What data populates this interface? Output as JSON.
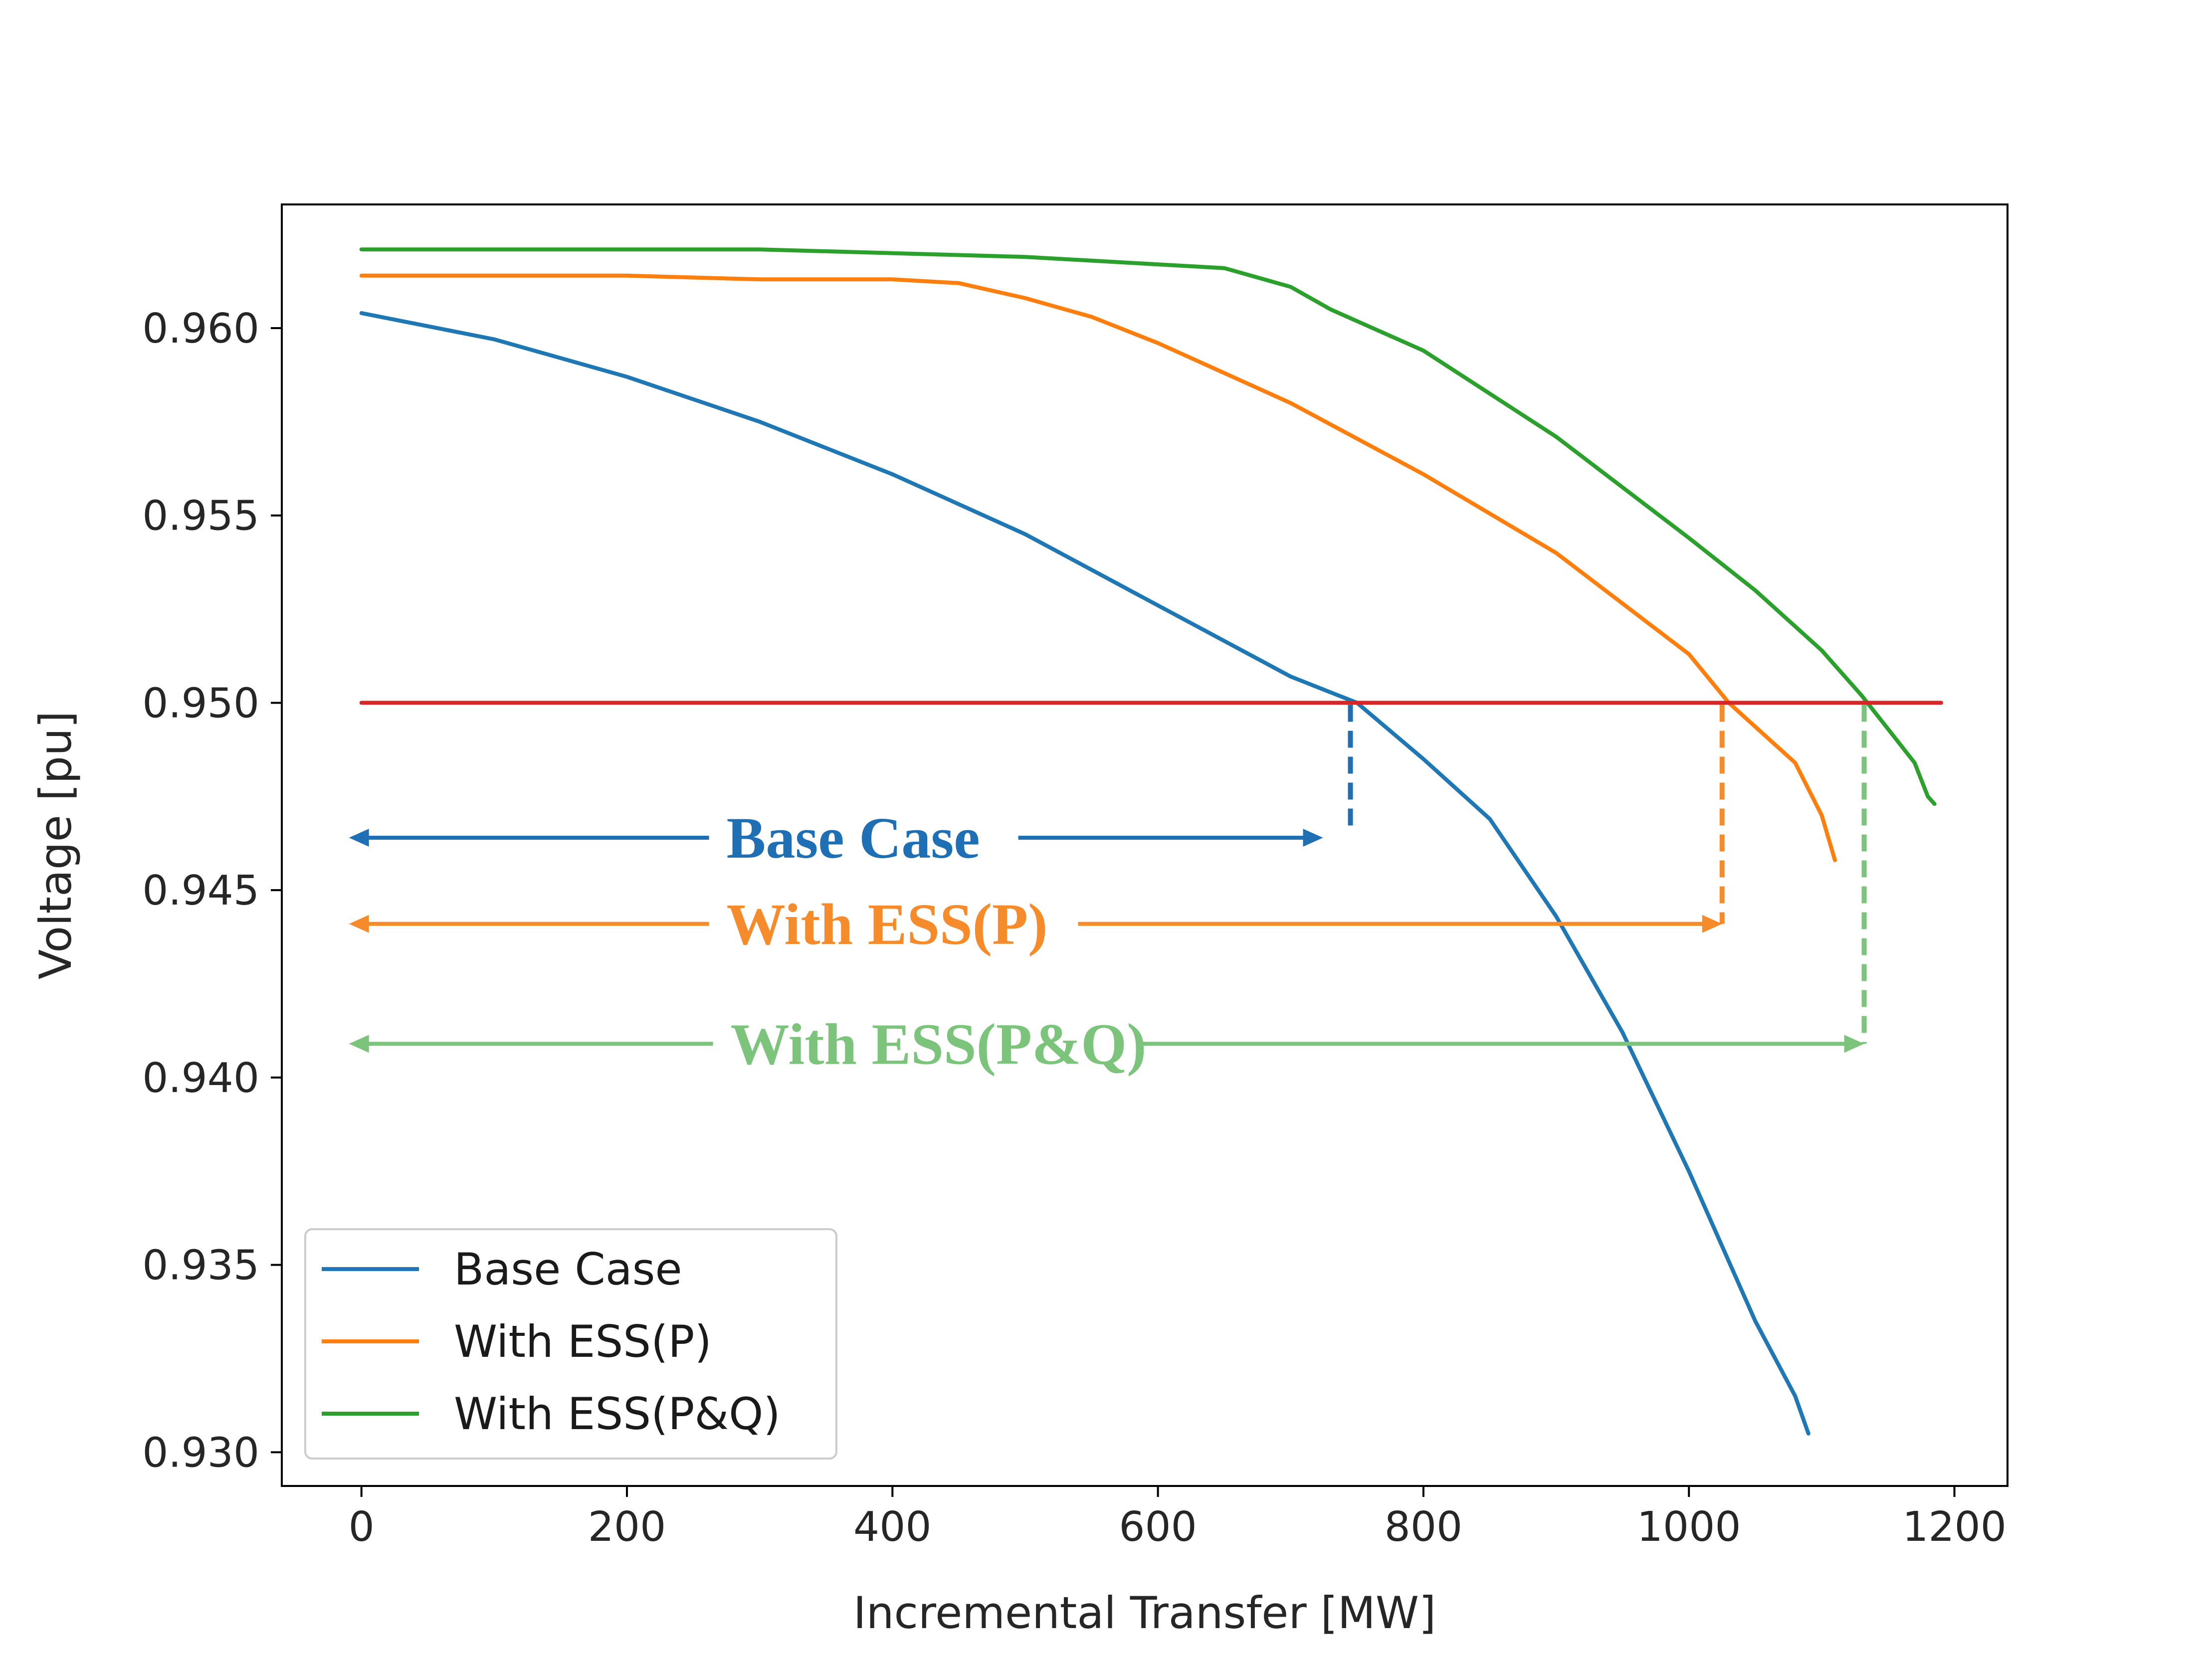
{
  "chart_data": {
    "type": "line",
    "xlabel": "Incremental Transfer [MW]",
    "ylabel": "Voltage [pu]",
    "xlim": [
      -60,
      1240
    ],
    "ylim": [
      0.9291,
      0.9633
    ],
    "x_ticks": [
      0,
      200,
      400,
      600,
      800,
      1000,
      1200
    ],
    "y_ticks": [
      0.93,
      0.935,
      0.94,
      0.945,
      0.95,
      0.955,
      0.96
    ],
    "y_tick_labels": [
      "0.930",
      "0.935",
      "0.940",
      "0.945",
      "0.950",
      "0.955",
      "0.960"
    ],
    "grid": false,
    "legend_position": "lower-left",
    "series": [
      {
        "name": "Base Case",
        "color": "#1f77b4",
        "points": [
          [
            0,
            0.9604
          ],
          [
            100,
            0.9597
          ],
          [
            200,
            0.9587
          ],
          [
            300,
            0.9575
          ],
          [
            400,
            0.9561
          ],
          [
            500,
            0.9545
          ],
          [
            600,
            0.9526
          ],
          [
            700,
            0.9507
          ],
          [
            750,
            0.95
          ],
          [
            800,
            0.9485
          ],
          [
            850,
            0.9469
          ],
          [
            900,
            0.9443
          ],
          [
            950,
            0.9412
          ],
          [
            1000,
            0.9375
          ],
          [
            1050,
            0.9335
          ],
          [
            1080,
            0.9315
          ],
          [
            1090,
            0.9305
          ]
        ]
      },
      {
        "name": "With ESS(P)",
        "color": "#ff7f0e",
        "points": [
          [
            0,
            0.9614
          ],
          [
            100,
            0.9614
          ],
          [
            200,
            0.9614
          ],
          [
            300,
            0.9613
          ],
          [
            400,
            0.9613
          ],
          [
            450,
            0.9612
          ],
          [
            500,
            0.9608
          ],
          [
            550,
            0.9603
          ],
          [
            600,
            0.9596
          ],
          [
            700,
            0.958
          ],
          [
            800,
            0.9561
          ],
          [
            900,
            0.954
          ],
          [
            1000,
            0.9513
          ],
          [
            1030,
            0.95
          ],
          [
            1080,
            0.9484
          ],
          [
            1100,
            0.947
          ],
          [
            1110,
            0.9458
          ]
        ]
      },
      {
        "name": "With ESS(P&Q)",
        "color": "#2ca02c",
        "points": [
          [
            0,
            0.9621
          ],
          [
            100,
            0.9621
          ],
          [
            200,
            0.9621
          ],
          [
            300,
            0.9621
          ],
          [
            400,
            0.962
          ],
          [
            500,
            0.9619
          ],
          [
            600,
            0.9617
          ],
          [
            650,
            0.9616
          ],
          [
            700,
            0.9611
          ],
          [
            730,
            0.9605
          ],
          [
            800,
            0.9594
          ],
          [
            900,
            0.9571
          ],
          [
            1000,
            0.9544
          ],
          [
            1050,
            0.953
          ],
          [
            1100,
            0.9514
          ],
          [
            1130,
            0.9502
          ],
          [
            1150,
            0.9493
          ],
          [
            1170,
            0.9484
          ],
          [
            1180,
            0.9475
          ],
          [
            1185,
            0.9473
          ]
        ]
      },
      {
        "color": "#d62728",
        "points": [
          [
            0,
            0.95
          ],
          [
            1190,
            0.95
          ]
        ]
      }
    ],
    "annotations": [
      {
        "text": "Base Case",
        "color": "#1f6fb4",
        "x_start": 0,
        "x_end": 745,
        "arrow_y": 0.9464,
        "label_x": 275,
        "label_y": 0.9464,
        "drop_from_y": 0.95,
        "drop_to_y": 0.9466
      },
      {
        "text": "With ESS(P)",
        "color": "#f68b2c",
        "x_start": 0,
        "x_end": 1025,
        "arrow_y": 0.9441,
        "label_x": 275,
        "label_y": 0.9441,
        "drop_from_y": 0.95,
        "drop_to_y": 0.9441
      },
      {
        "text": "With ESS(P&Q)",
        "color": "#7cc47c",
        "x_start": 0,
        "x_end": 1132,
        "arrow_y": 0.9409,
        "label_x": 278,
        "label_y": 0.9409,
        "drop_from_y": 0.95,
        "drop_to_y": 0.9409
      }
    ]
  }
}
